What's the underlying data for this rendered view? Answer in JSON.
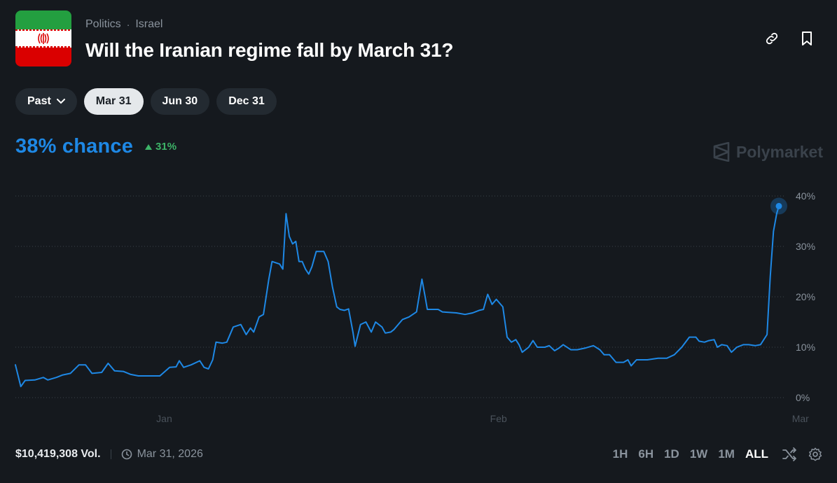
{
  "header": {
    "category": "Politics",
    "subcategory": "Israel",
    "title": "Will the Iranian regime fall by March 31?",
    "flag_icon": "iran-flag"
  },
  "date_pills": [
    {
      "label": "Past",
      "active": false,
      "dropdown": true
    },
    {
      "label": "Mar 31",
      "active": true
    },
    {
      "label": "Jun 30",
      "active": false
    },
    {
      "label": "Dec 31",
      "active": false
    }
  ],
  "summary": {
    "chance": "38% chance",
    "delta": "31%",
    "delta_direction": "up"
  },
  "brand": "Polymarket",
  "footer": {
    "volume": "$10,419,308 Vol.",
    "end_date": "Mar 31, 2026"
  },
  "ranges": [
    "1H",
    "6H",
    "1D",
    "1W",
    "1M",
    "ALL"
  ],
  "active_range": "ALL",
  "colors": {
    "background": "#15191e",
    "line": "#1e88e5",
    "positive": "#3db468",
    "muted": "#8a939d"
  },
  "chart_data": {
    "type": "line",
    "ylim": [
      0,
      40
    ],
    "ytick_labels": [
      "40%",
      "30%",
      "20%",
      "10%",
      "0%"
    ],
    "yticks": [
      40,
      30,
      20,
      10,
      0
    ],
    "xtick_labels": [
      {
        "label": "Jan",
        "day": 22.5
      },
      {
        "label": "Feb",
        "day": 53.5
      },
      {
        "label": "Mar",
        "day": 81.5
      }
    ],
    "grid": "horizontal-dotted",
    "series": [
      {
        "values": [
          [
            8.7,
            6.5
          ],
          [
            9.2,
            2.2
          ],
          [
            9.6,
            3.4
          ],
          [
            10.5,
            3.5
          ],
          [
            11.3,
            4.0
          ],
          [
            11.7,
            3.5
          ],
          [
            12.5,
            4.0
          ],
          [
            13.1,
            4.5
          ],
          [
            13.8,
            4.8
          ],
          [
            14.6,
            6.5
          ],
          [
            15.2,
            6.5
          ],
          [
            15.8,
            4.8
          ],
          [
            16.7,
            5.0
          ],
          [
            17.3,
            6.8
          ],
          [
            17.9,
            5.3
          ],
          [
            18.7,
            5.2
          ],
          [
            19.4,
            4.6
          ],
          [
            20.1,
            4.3
          ],
          [
            21.6,
            4.3
          ],
          [
            22.1,
            4.3
          ],
          [
            23.0,
            6.0
          ],
          [
            23.6,
            6.1
          ],
          [
            23.9,
            7.3
          ],
          [
            24.3,
            6.0
          ],
          [
            25.0,
            6.5
          ],
          [
            25.8,
            7.3
          ],
          [
            26.2,
            6.0
          ],
          [
            26.6,
            5.7
          ],
          [
            27.0,
            7.5
          ],
          [
            27.3,
            11.0
          ],
          [
            27.9,
            10.8
          ],
          [
            28.3,
            11.0
          ],
          [
            28.9,
            14.0
          ],
          [
            29.6,
            14.5
          ],
          [
            30.1,
            12.5
          ],
          [
            30.5,
            13.8
          ],
          [
            30.8,
            13.0
          ],
          [
            31.3,
            16.0
          ],
          [
            31.7,
            16.5
          ],
          [
            32.2,
            23.5
          ],
          [
            32.5,
            27.0
          ],
          [
            33.2,
            26.5
          ],
          [
            33.5,
            25.5
          ],
          [
            33.8,
            36.5
          ],
          [
            34.1,
            32.0
          ],
          [
            34.4,
            30.5
          ],
          [
            34.7,
            31.0
          ],
          [
            35.0,
            27.0
          ],
          [
            35.3,
            27.0
          ],
          [
            35.6,
            25.5
          ],
          [
            35.9,
            24.5
          ],
          [
            36.2,
            26.0
          ],
          [
            36.6,
            29.0
          ],
          [
            37.3,
            29.0
          ],
          [
            37.7,
            27.0
          ],
          [
            38.1,
            22.0
          ],
          [
            38.5,
            18.0
          ],
          [
            38.8,
            17.5
          ],
          [
            39.2,
            17.3
          ],
          [
            39.6,
            17.6
          ],
          [
            40.0,
            13.0
          ],
          [
            40.2,
            10.2
          ],
          [
            40.7,
            14.5
          ],
          [
            41.2,
            15.0
          ],
          [
            41.7,
            13.0
          ],
          [
            42.1,
            15.0
          ],
          [
            42.7,
            14.0
          ],
          [
            43.0,
            12.8
          ],
          [
            43.5,
            13.0
          ],
          [
            43.8,
            13.5
          ],
          [
            44.2,
            14.5
          ],
          [
            44.6,
            15.5
          ],
          [
            45.2,
            16.0
          ],
          [
            45.9,
            17.0
          ],
          [
            46.4,
            23.5
          ],
          [
            46.7,
            20.0
          ],
          [
            46.9,
            17.5
          ],
          [
            47.9,
            17.5
          ],
          [
            48.3,
            17.0
          ],
          [
            49.6,
            16.8
          ],
          [
            50.4,
            16.5
          ],
          [
            51.1,
            16.8
          ],
          [
            51.7,
            17.3
          ],
          [
            52.1,
            17.5
          ],
          [
            52.5,
            20.5
          ],
          [
            52.9,
            18.5
          ],
          [
            53.3,
            19.5
          ],
          [
            53.9,
            18.0
          ],
          [
            54.3,
            12.0
          ],
          [
            54.7,
            11.0
          ],
          [
            55.1,
            11.5
          ],
          [
            55.4,
            10.5
          ],
          [
            55.7,
            9.0
          ],
          [
            56.3,
            10.0
          ],
          [
            56.7,
            11.3
          ],
          [
            57.1,
            10.0
          ],
          [
            57.8,
            10.0
          ],
          [
            58.2,
            10.3
          ],
          [
            58.7,
            9.3
          ],
          [
            59.1,
            9.8
          ],
          [
            59.5,
            10.5
          ],
          [
            60.2,
            9.5
          ],
          [
            60.8,
            9.5
          ],
          [
            61.5,
            9.8
          ],
          [
            62.3,
            10.3
          ],
          [
            62.9,
            9.5
          ],
          [
            63.3,
            8.5
          ],
          [
            63.8,
            8.5
          ],
          [
            64.4,
            7.0
          ],
          [
            65.1,
            7.0
          ],
          [
            65.5,
            7.5
          ],
          [
            65.8,
            6.3
          ],
          [
            66.3,
            7.5
          ],
          [
            66.9,
            7.5
          ],
          [
            67.3,
            7.5
          ],
          [
            68.3,
            7.8
          ],
          [
            69.1,
            7.8
          ],
          [
            69.8,
            8.5
          ],
          [
            70.5,
            10.0
          ],
          [
            71.2,
            12.0
          ],
          [
            71.8,
            12.0
          ],
          [
            72.1,
            11.2
          ],
          [
            72.6,
            11.0
          ],
          [
            73.0,
            11.3
          ],
          [
            73.5,
            11.5
          ],
          [
            73.8,
            10.0
          ],
          [
            74.2,
            10.5
          ],
          [
            74.7,
            10.3
          ],
          [
            75.1,
            9.0
          ],
          [
            75.6,
            10.0
          ],
          [
            76.2,
            10.5
          ],
          [
            76.7,
            10.5
          ],
          [
            77.3,
            10.3
          ],
          [
            77.8,
            10.5
          ],
          [
            78.4,
            12.5
          ],
          [
            78.7,
            24.0
          ],
          [
            79.0,
            33.0
          ],
          [
            79.3,
            36.5
          ],
          [
            79.5,
            38.0
          ]
        ]
      }
    ],
    "current_value": 38
  }
}
